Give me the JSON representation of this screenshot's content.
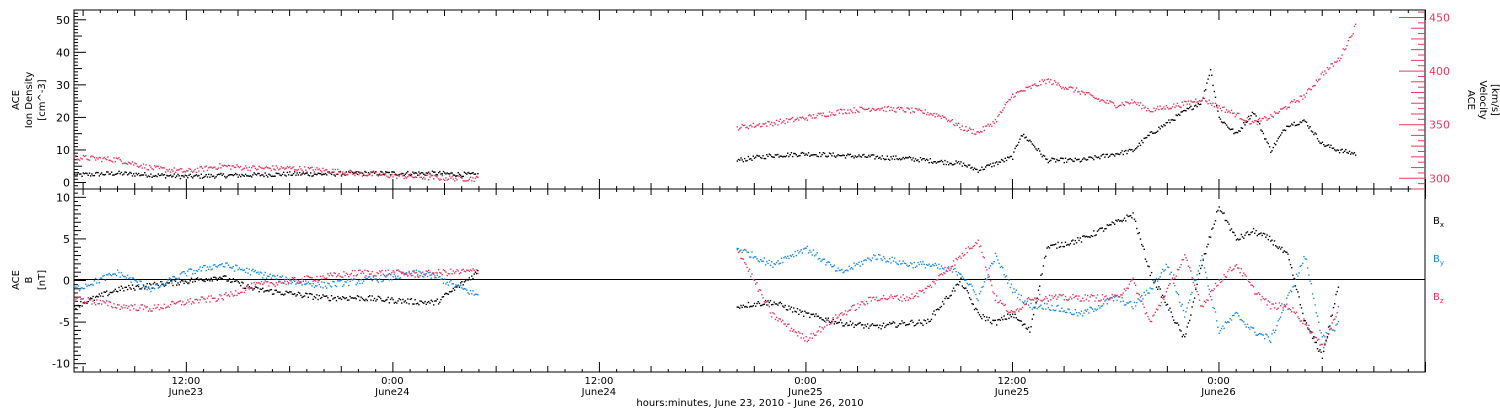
{
  "colors": {
    "black": "#000000",
    "pink": "#e8385e",
    "blue": "#1a8ae6"
  },
  "x_axis": {
    "title": "hours:minutes, June 23, 2010 - June 26, 2010",
    "ticks": [
      {
        "time": "12:00",
        "date": "June23",
        "hour": 12
      },
      {
        "time": "0:00",
        "date": "June24",
        "hour": 24
      },
      {
        "time": "12:00",
        "date": "June24",
        "hour": 36
      },
      {
        "time": "0:00",
        "date": "June25",
        "hour": 48
      },
      {
        "time": "12:00",
        "date": "June25",
        "hour": 60
      },
      {
        "time": "0:00",
        "date": "June26",
        "hour": 72
      }
    ]
  },
  "panel1": {
    "left_label": [
      "ACE",
      "Ion Density",
      "[cm^-3]"
    ],
    "right_label": [
      "ACE",
      "Velocity",
      "[km/s]"
    ],
    "left_ticks": [
      "0",
      "10",
      "20",
      "30",
      "40",
      "50"
    ],
    "right_ticks": [
      "300",
      "350",
      "400",
      "450"
    ]
  },
  "panel2": {
    "left_label": [
      "ACE",
      "B",
      "[nT]"
    ],
    "left_ticks": [
      "-10",
      "-5",
      "0",
      "5",
      "10"
    ],
    "legend": [
      {
        "base": "B",
        "sub": "x",
        "color": "#000000"
      },
      {
        "base": "B",
        "sub": "y",
        "color": "#1a8ae6"
      },
      {
        "base": "B",
        "sub": "z",
        "color": "#e8385e"
      }
    ]
  },
  "chart_data": [
    {
      "type": "scatter",
      "title": "",
      "xlabel": "hours:minutes, June 23, 2010 - June 26, 2010",
      "x_unit": "hours since 2010-06-23 00:00",
      "xlim": [
        5.5,
        84
      ],
      "ylabel": "ACE Ion Density [cm^-3]",
      "ylim": [
        -2,
        53
      ],
      "y2label": "ACE Velocity [km/s]",
      "y2lim": [
        290,
        457
      ],
      "series": [
        {
          "name": "Ion Density",
          "axis": "left",
          "color": "#000000",
          "points": [
            [
              5.5,
              2.5
            ],
            [
              8,
              3
            ],
            [
              10,
              2.5
            ],
            [
              12,
              2
            ],
            [
              14,
              2.3
            ],
            [
              16,
              2.5
            ],
            [
              18,
              2.8
            ],
            [
              20,
              2.8
            ],
            [
              22,
              3
            ],
            [
              24,
              3
            ],
            [
              25.5,
              3
            ],
            [
              26.5,
              3
            ],
            [
              29,
              2.5
            ],
            [
              44,
              7
            ],
            [
              46,
              8.5
            ],
            [
              48,
              9
            ],
            [
              50,
              8.5
            ],
            [
              52,
              8
            ],
            [
              54,
              7.5
            ],
            [
              55,
              7
            ],
            [
              57,
              6
            ],
            [
              58,
              4
            ],
            [
              59,
              6
            ],
            [
              60,
              8
            ],
            [
              60.5,
              15
            ],
            [
              61,
              13
            ],
            [
              62,
              7
            ],
            [
              64,
              7
            ],
            [
              66,
              9
            ],
            [
              67,
              10
            ],
            [
              68,
              15
            ],
            [
              70,
              22
            ],
            [
              71,
              25
            ],
            [
              71.5,
              35
            ],
            [
              72,
              20
            ],
            [
              73,
              15
            ],
            [
              74,
              22
            ],
            [
              75,
              10
            ],
            [
              76,
              18
            ],
            [
              77,
              19
            ],
            [
              78,
              12
            ],
            [
              79,
              10
            ],
            [
              80,
              9
            ]
          ]
        },
        {
          "name": "Velocity",
          "axis": "right",
          "color": "#e8385e",
          "points": [
            [
              5.5,
              320
            ],
            [
              8,
              318
            ],
            [
              10,
              310
            ],
            [
              12,
              307
            ],
            [
              14,
              312
            ],
            [
              16,
              310
            ],
            [
              18,
              310
            ],
            [
              20,
              308
            ],
            [
              22,
              305
            ],
            [
              24,
              303
            ],
            [
              25.5,
              302
            ],
            [
              26.5,
              301
            ],
            [
              29,
              300
            ],
            [
              44,
              348
            ],
            [
              46,
              352
            ],
            [
              48,
              357
            ],
            [
              50,
              363
            ],
            [
              52,
              366
            ],
            [
              54,
              364
            ],
            [
              55,
              362
            ],
            [
              56,
              358
            ],
            [
              57,
              348
            ],
            [
              58,
              343
            ],
            [
              59,
              354
            ],
            [
              60,
              378
            ],
            [
              61,
              385
            ],
            [
              62,
              392
            ],
            [
              63,
              386
            ],
            [
              64,
              381
            ],
            [
              65,
              374
            ],
            [
              66,
              369
            ],
            [
              67,
              372
            ],
            [
              68,
              364
            ],
            [
              69,
              367
            ],
            [
              70,
              370
            ],
            [
              71,
              375
            ],
            [
              72,
              367
            ],
            [
              73,
              360
            ],
            [
              74,
              352
            ],
            [
              75,
              358
            ],
            [
              76,
              368
            ],
            [
              77,
              378
            ],
            [
              78,
              398
            ],
            [
              79,
              412
            ],
            [
              80,
              445
            ]
          ]
        }
      ]
    },
    {
      "type": "scatter",
      "title": "",
      "xlabel": "hours:minutes, June 23, 2010 - June 26, 2010",
      "x_unit": "hours since 2010-06-23 00:00",
      "xlim": [
        5.5,
        84
      ],
      "ylabel": "ACE B [nT]",
      "ylim": [
        -11,
        11
      ],
      "zero_line": true,
      "series": [
        {
          "name": "Bx",
          "color": "#000000",
          "points": [
            [
              5.5,
              -3
            ],
            [
              8,
              -1
            ],
            [
              10,
              -0.5
            ],
            [
              12,
              0
            ],
            [
              14,
              0.5
            ],
            [
              16,
              -1
            ],
            [
              18,
              -1.5
            ],
            [
              20,
              -2
            ],
            [
              22,
              -2
            ],
            [
              24,
              -2.3
            ],
            [
              25.5,
              -2.5
            ],
            [
              26.5,
              -2.6
            ],
            [
              29,
              1.2
            ],
            [
              44,
              -3
            ],
            [
              46,
              -2.5
            ],
            [
              48,
              -4
            ],
            [
              50,
              -5
            ],
            [
              52,
              -5.5
            ],
            [
              54,
              -5
            ],
            [
              55,
              -5
            ],
            [
              57,
              0
            ],
            [
              58,
              -4
            ],
            [
              59,
              -5
            ],
            [
              60,
              -4
            ],
            [
              61,
              -6
            ],
            [
              62,
              4
            ],
            [
              64,
              5
            ],
            [
              66,
              7
            ],
            [
              67,
              8
            ],
            [
              68,
              1
            ],
            [
              69,
              -3
            ],
            [
              70,
              -7
            ],
            [
              71,
              2
            ],
            [
              72,
              9
            ],
            [
              73,
              5
            ],
            [
              74,
              6
            ],
            [
              75,
              5
            ],
            [
              76,
              3
            ],
            [
              77,
              -5
            ],
            [
              78,
              -9
            ],
            [
              79,
              0
            ]
          ]
        },
        {
          "name": "By",
          "color": "#1a8ae6",
          "points": [
            [
              5.5,
              -1
            ],
            [
              8,
              1
            ],
            [
              10,
              -1
            ],
            [
              12,
              1
            ],
            [
              14,
              2
            ],
            [
              16,
              1
            ],
            [
              18,
              0
            ],
            [
              20,
              -0.5
            ],
            [
              22,
              0
            ],
            [
              24,
              0.5
            ],
            [
              25.5,
              1
            ],
            [
              26.5,
              0.5
            ],
            [
              29,
              -1.8
            ],
            [
              44,
              4
            ],
            [
              46,
              2
            ],
            [
              48,
              4
            ],
            [
              50,
              1
            ],
            [
              52,
              3
            ],
            [
              54,
              2
            ],
            [
              55,
              2
            ],
            [
              57,
              1
            ],
            [
              58,
              -2
            ],
            [
              59,
              3
            ],
            [
              60,
              -1
            ],
            [
              61,
              -3
            ],
            [
              62,
              -3
            ],
            [
              64,
              -4
            ],
            [
              66,
              -2
            ],
            [
              67,
              -3
            ],
            [
              68,
              -1
            ],
            [
              69,
              2
            ],
            [
              70,
              -4
            ],
            [
              71,
              3
            ],
            [
              72,
              -6
            ],
            [
              73,
              -4
            ],
            [
              74,
              -6
            ],
            [
              75,
              -7
            ],
            [
              76,
              -2
            ],
            [
              77,
              3
            ],
            [
              78,
              -7
            ],
            [
              79,
              -5
            ]
          ]
        },
        {
          "name": "Bz",
          "color": "#e8385e",
          "points": [
            [
              5.5,
              -2
            ],
            [
              8,
              -3
            ],
            [
              10,
              -3.3
            ],
            [
              12,
              -2.5
            ],
            [
              14,
              -2
            ],
            [
              16,
              -0.5
            ],
            [
              18,
              0
            ],
            [
              20,
              0.5
            ],
            [
              22,
              1
            ],
            [
              24,
              1
            ],
            [
              25.5,
              0.8
            ],
            [
              26.5,
              1
            ],
            [
              29,
              1.2
            ],
            [
              44,
              4
            ],
            [
              46,
              -4
            ],
            [
              48,
              -7
            ],
            [
              50,
              -4
            ],
            [
              52,
              -2
            ],
            [
              54,
              -2
            ],
            [
              55,
              -1
            ],
            [
              57,
              3
            ],
            [
              58,
              5
            ],
            [
              59,
              -2
            ],
            [
              60,
              -4
            ],
            [
              61,
              -2
            ],
            [
              62,
              -2
            ],
            [
              64,
              -2
            ],
            [
              66,
              -2
            ],
            [
              67,
              0
            ],
            [
              68,
              -5
            ],
            [
              69,
              -1
            ],
            [
              70,
              3
            ],
            [
              71,
              -3
            ],
            [
              72,
              0
            ],
            [
              73,
              2
            ],
            [
              74,
              -1
            ],
            [
              75,
              -3
            ],
            [
              76,
              -3
            ],
            [
              77,
              -5
            ],
            [
              78,
              -8
            ],
            [
              79,
              -3
            ]
          ]
        }
      ]
    }
  ]
}
